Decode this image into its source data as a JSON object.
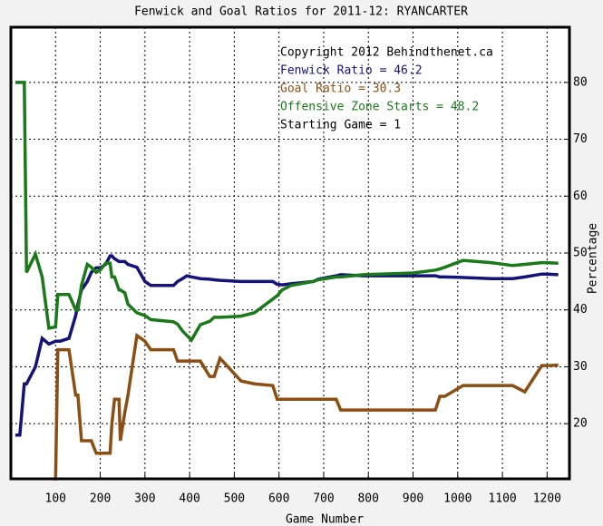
{
  "chart_data": {
    "type": "line",
    "title": "Fenwick and Goal Ratios for 2011-12: RYANCARTER",
    "xlabel": "Game Number",
    "ylabel": "Percentage",
    "x": [
      10,
      20,
      30,
      35,
      55,
      70,
      85,
      100,
      105,
      110,
      130,
      145,
      150,
      158,
      171,
      180,
      191,
      200,
      212,
      222,
      226,
      232,
      242,
      245,
      255,
      262,
      282,
      300,
      313,
      364,
      373,
      384,
      394,
      404,
      424,
      445,
      455,
      468,
      515,
      545,
      586,
      596,
      607,
      627,
      677,
      688,
      728,
      738,
      789,
      900,
      950,
      960,
      971,
      1012,
      1075,
      1123,
      1150,
      1188,
      1200,
      1225
    ],
    "series": [
      {
        "name": "Fenwick Ratio = 46.2",
        "color": "#141478",
        "values": [
          18,
          18,
          27,
          27,
          30,
          35,
          34,
          34.5,
          34.5,
          34.5,
          35,
          39,
          41,
          43.5,
          45,
          46.6,
          47.4,
          47.4,
          48,
          49.5,
          49.5,
          49,
          48.5,
          48.5,
          48.5,
          48,
          47.5,
          45,
          44.3,
          44.3,
          45,
          45.5,
          46,
          45.8,
          45.5,
          45.4,
          45.3,
          45.2,
          45,
          45,
          45,
          44.5,
          44.4,
          44.6,
          45,
          45.4,
          46,
          46.2,
          46,
          46,
          46,
          45.8,
          45.8,
          45.7,
          45.5,
          45.5,
          45.8,
          46.3,
          46.3,
          46.2
        ]
      },
      {
        "name": "Goal Ratio = 30.3",
        "color": "#8b4f14",
        "values": [
          null,
          null,
          null,
          null,
          null,
          null,
          null,
          10,
          33,
          33,
          33,
          25,
          25,
          17,
          17,
          17,
          14.8,
          14.8,
          14.8,
          14.8,
          20,
          24.3,
          24.3,
          17,
          22,
          25,
          35.5,
          34.5,
          33,
          33,
          31,
          31,
          31,
          31,
          31,
          28.3,
          28.3,
          31.5,
          27.5,
          27,
          26.7,
          24.3,
          24.3,
          24.3,
          24.3,
          24.3,
          24.3,
          22.4,
          22.4,
          22.4,
          22.4,
          24.8,
          24.8,
          26.7,
          26.7,
          26.7,
          25.6,
          30.2,
          30.2,
          30.3
        ]
      },
      {
        "name": "Offensive Zone Starts = 48.2",
        "color": "#1a7a1a",
        "values": [
          80,
          80,
          80,
          46.6,
          49.8,
          45.8,
          36.8,
          37,
          42.7,
          42.7,
          42.7,
          40,
          40,
          44.3,
          48,
          47.5,
          46.6,
          47,
          48.2,
          48.2,
          45.8,
          45.8,
          43.5,
          43.5,
          43,
          41,
          39.5,
          39,
          38.3,
          37.9,
          37.5,
          36.3,
          35.5,
          34.7,
          37.4,
          38,
          38.7,
          38.7,
          38.9,
          39.5,
          41.9,
          42.5,
          43.5,
          44.3,
          45,
          45.3,
          45.8,
          45.8,
          46.2,
          46.5,
          47,
          47.2,
          47.5,
          48.7,
          48.3,
          47.8,
          48,
          48.3,
          48.3,
          48.2
        ]
      }
    ],
    "annotations": [
      {
        "text": "Copyright 2012 Behindthenet.ca",
        "color": "#000000"
      },
      {
        "text": "Starting Game = 1",
        "color": "#000000"
      }
    ],
    "xlim": [
      0,
      1250
    ],
    "ylim": [
      10.3,
      89.7
    ],
    "xticks": [
      100,
      200,
      300,
      400,
      500,
      600,
      700,
      800,
      900,
      1000,
      1100,
      1200
    ],
    "yticks": [
      20,
      30,
      40,
      50,
      60,
      70,
      80
    ],
    "grid": true
  }
}
